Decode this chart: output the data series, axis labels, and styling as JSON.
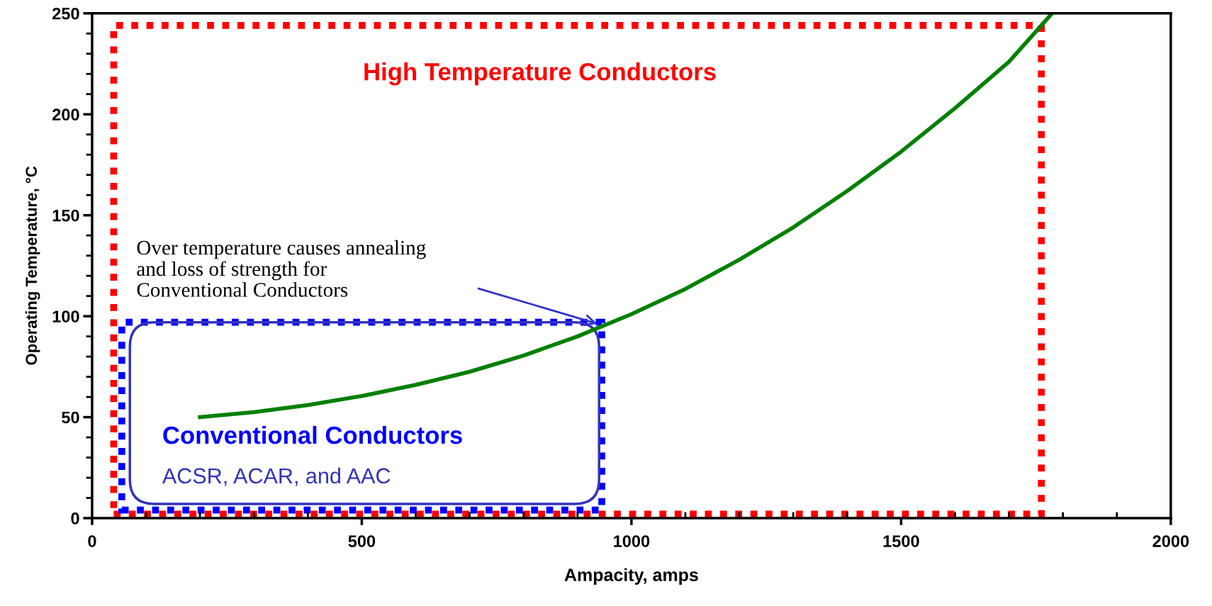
{
  "chart_data": {
    "type": "line",
    "xlabel": "Ampacity, amps",
    "ylabel": "Operating Temperature, °C",
    "x": [
      200,
      300,
      400,
      500,
      600,
      700,
      800,
      900,
      1000,
      1100,
      1200,
      1300,
      1400,
      1500,
      1600,
      1700,
      1780
    ],
    "series": [
      {
        "color": "#008000",
        "values": [
          50,
          52.5,
          56,
          60.5,
          66,
          72.5,
          80.5,
          90,
          101,
          113.5,
          128,
          144,
          162,
          181.5,
          203,
          226,
          250
        ]
      }
    ],
    "xlim": [
      0,
      2000
    ],
    "ylim": [
      0,
      250
    ],
    "xticks": [
      0,
      {
        "value": 100,
        "label": null
      },
      {
        "value": 200,
        "label": null
      },
      {
        "value": 300,
        "label": null
      },
      {
        "value": 400,
        "label": null
      },
      500,
      {
        "value": 600,
        "label": null
      },
      {
        "value": 700,
        "label": null
      },
      {
        "value": 800,
        "label": null
      },
      {
        "value": 900,
        "label": null
      },
      1000,
      {
        "value": 1100,
        "label": null
      },
      {
        "value": 1200,
        "label": null
      },
      {
        "value": 1300,
        "label": null
      },
      {
        "value": 1400,
        "label": null
      },
      1500,
      {
        "value": 1600,
        "label": null
      },
      {
        "value": 1700,
        "label": null
      },
      {
        "value": 1800,
        "label": null
      },
      {
        "value": 1900,
        "label": null
      },
      2000
    ],
    "yticks": [
      0,
      {
        "value": 10,
        "label": null
      },
      {
        "value": 20,
        "label": null
      },
      {
        "value": 30,
        "label": null
      },
      {
        "value": 40,
        "label": null
      },
      50,
      {
        "value": 60,
        "label": null
      },
      {
        "value": 70,
        "label": null
      },
      {
        "value": 80,
        "label": null
      },
      {
        "value": 90,
        "label": null
      },
      100,
      {
        "value": 110,
        "label": null
      },
      {
        "value": 120,
        "label": null
      },
      {
        "value": 130,
        "label": null
      },
      {
        "value": 140,
        "label": null
      },
      150,
      {
        "value": 160,
        "label": null
      },
      {
        "value": 170,
        "label": null
      },
      {
        "value": 180,
        "label": null
      },
      {
        "value": 190,
        "label": null
      },
      200,
      {
        "value": 210,
        "label": null
      },
      {
        "value": 220,
        "label": null
      },
      {
        "value": 230,
        "label": null
      },
      {
        "value": 240,
        "label": null
      },
      250
    ],
    "grid": false,
    "legend": false,
    "marker": "none",
    "line_style": "solid",
    "annotations": [
      "High Temperature Conductors",
      "Conventional Conductors",
      "ACSR, ACAR, and AAC",
      "Over temperature causes annealing\nand loss of strength for\nConventional Conductors"
    ]
  }
}
